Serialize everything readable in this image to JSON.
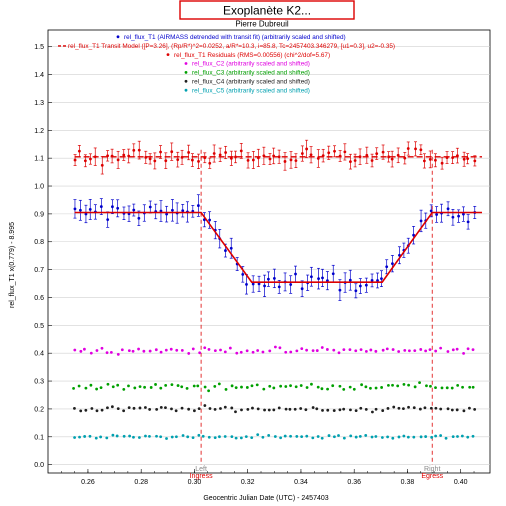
{
  "title": "Exoplanète K2...",
  "subtitle": "Pierre Dubreuil",
  "chart_data": {
    "type": "scatter",
    "xlabel": "Geocentric Julian Date (UTC) - 2457403",
    "ylabel": "rel_flux_T1 x(0.779) - 8.995",
    "xlim": [
      0.245,
      0.411
    ],
    "ylim": [
      -0.03,
      1.56
    ],
    "x_ticks": [
      "0.26",
      "0.28",
      "0.30",
      "0.32",
      "0.34",
      "0.36",
      "0.38",
      "0.40"
    ],
    "x_tick_values": [
      0.26,
      0.28,
      0.3,
      0.32,
      0.34,
      0.36,
      0.38,
      0.4
    ],
    "y_ticks": [
      "0.0",
      "0.1",
      "0.2",
      "0.3",
      "0.4",
      "0.5",
      "0.6",
      "0.7",
      "0.8",
      "0.9",
      "1.0",
      "1.1",
      "1.2",
      "1.3",
      "1.4",
      "1.5"
    ],
    "y_tick_values": [
      0.0,
      0.1,
      0.2,
      0.3,
      0.4,
      0.5,
      0.6,
      0.7,
      0.8,
      0.9,
      1.0,
      1.1,
      1.2,
      1.3,
      1.4,
      1.5
    ],
    "grid": "horizontal",
    "legend_position": "top-center",
    "legend": [
      {
        "label": "rel_flux_T1 (AIRMASS detrended with transit fit) (arbitrarily scaled and shifted)",
        "color": "#0000cc"
      },
      {
        "label": "rel_flux_T1 Transit Model ([P=3.26], (Rp/R*)^2=0.0252, a/R*=10.3, i=85.8, Tc=2457403.346279, [u1=0.3], u2=-0.35)",
        "color": "#dd0000"
      },
      {
        "label": "rel_flux_T1 Residuals (RMS=0.00556) (chi^2/dof=5.67)",
        "color": "#dd0000"
      },
      {
        "label": "rel_flux_C2 (arbitrarily scaled and shifted)",
        "color": "#e000e0"
      },
      {
        "label": "rel_flux_C3 (arbitrarily scaled and shifted)",
        "color": "#00a000"
      },
      {
        "label": "rel_flux_C4 (arbitrarily scaled and shifted)",
        "color": "#202020"
      },
      {
        "label": "rel_flux_C5 (arbitrarily scaled and shifted)",
        "color": "#00a0b0"
      }
    ],
    "markers": [
      {
        "x": 0.3025,
        "label_top": "Left",
        "label_bottom": "Ingress"
      },
      {
        "x": 0.3893,
        "label_top": "Right",
        "label_bottom": "Egress"
      }
    ],
    "x_range": [
      0.255,
      0.405
    ],
    "model": {
      "baseline": 0.905,
      "bottom": 0.655,
      "x1": 0.3025,
      "x2": 0.3215,
      "x3": 0.3705,
      "x4": 0.3893,
      "x_start": 0.255,
      "x_end": 0.408
    },
    "series": [
      {
        "name": "rel_flux_T1",
        "kind": "transit",
        "color": "#0000cc",
        "n": 75,
        "noise": 0.045,
        "errbar": 0.03
      },
      {
        "name": "rel_flux_T1 Residuals",
        "kind": "flat",
        "level": 1.105,
        "color": "#dd0000",
        "n": 75,
        "noise": 0.045,
        "errbar": 0.025
      },
      {
        "name": "rel_flux_C2",
        "kind": "flat",
        "level": 0.41,
        "color": "#e000e0",
        "n": 75,
        "noise": 0.015
      },
      {
        "name": "rel_flux_C3",
        "kind": "flat",
        "level": 0.28,
        "color": "#00a000",
        "n": 75,
        "noise": 0.018
      },
      {
        "name": "rel_flux_C4",
        "kind": "flat",
        "level": 0.2,
        "color": "#202020",
        "n": 75,
        "noise": 0.015
      },
      {
        "name": "rel_flux_C5",
        "kind": "flat",
        "level": 0.1,
        "color": "#00a0b0",
        "n": 75,
        "noise": 0.01
      }
    ]
  }
}
